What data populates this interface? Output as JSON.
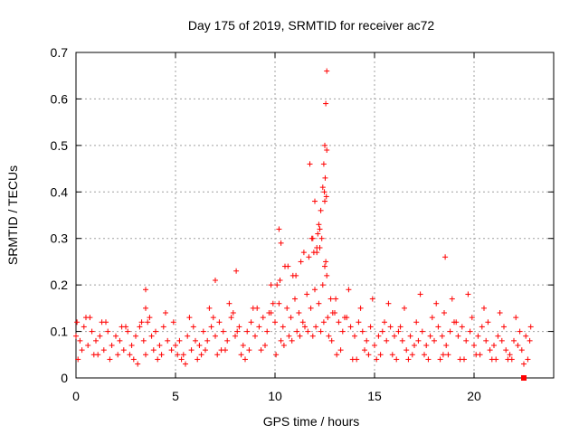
{
  "chart_data": {
    "type": "scatter",
    "title": "Day 175 of 2019, SRMTID for receiver ac72",
    "xlabel": "GPS time / hours",
    "ylabel": "SRMTID / TECUs",
    "xlim": [
      0,
      24
    ],
    "ylim": [
      0,
      0.7
    ],
    "xticks": [
      0,
      5,
      10,
      15,
      20
    ],
    "yticks": [
      0,
      0.1,
      0.2,
      0.3,
      0.4,
      0.5,
      0.6,
      0.7
    ],
    "xtick_labels": [
      "0",
      "5",
      "10",
      "15",
      "20"
    ],
    "ytick_labels": [
      "0",
      "0.1",
      "0.2",
      "0.3",
      "0.4",
      "0.5",
      "0.6",
      "0.7"
    ],
    "grid": true,
    "marker": "plus",
    "color": "#ff0000",
    "series": [
      {
        "name": "SRMTID",
        "x": [
          0.0,
          0.2,
          0.4,
          0.6,
          0.8,
          1.0,
          1.2,
          1.4,
          1.6,
          1.8,
          2.0,
          2.2,
          2.4,
          2.6,
          2.8,
          3.0,
          3.2,
          3.4,
          3.6,
          3.8,
          4.0,
          4.2,
          4.4,
          4.6,
          4.8,
          5.0,
          5.2,
          5.4,
          5.6,
          5.8,
          6.0,
          6.2,
          6.4,
          6.6,
          6.8,
          7.0,
          7.2,
          7.4,
          7.6,
          7.8,
          8.0,
          8.2,
          8.4,
          8.6,
          8.8,
          9.0,
          9.2,
          9.4,
          9.6,
          9.8,
          10.0,
          10.2,
          10.4,
          10.6,
          10.8,
          11.0,
          11.2,
          11.4,
          11.6,
          11.8,
          12.0,
          12.2,
          12.4,
          12.6,
          12.8,
          13.0,
          13.2,
          13.4,
          13.6,
          13.8,
          14.0,
          14.2,
          14.4,
          14.6,
          14.8,
          15.0,
          15.2,
          15.4,
          15.6,
          15.8,
          16.0,
          16.2,
          16.4,
          16.6,
          16.8,
          17.0,
          17.2,
          17.4,
          17.6,
          17.8,
          18.0,
          18.2,
          18.4,
          18.6,
          18.8,
          19.0,
          19.2,
          19.4,
          19.6,
          19.8,
          20.0,
          20.2,
          20.4,
          20.6,
          20.8,
          21.0,
          21.2,
          21.4,
          21.6,
          21.8,
          22.0,
          22.2,
          22.4,
          22.6,
          22.8,
          0.05,
          0.3,
          0.7,
          1.1,
          1.5,
          2.1,
          2.5,
          2.9,
          3.3,
          3.5,
          3.7,
          4.3,
          4.9,
          5.3,
          5.9,
          6.3,
          6.9,
          7.3,
          7.9,
          8.1,
          8.3,
          8.9,
          9.3,
          9.7,
          10.1,
          10.3,
          10.5,
          10.7,
          10.9,
          11.1,
          11.3,
          11.5,
          11.7,
          11.9,
          12.1,
          12.3,
          12.5,
          12.7,
          12.9,
          13.1,
          13.5,
          13.9,
          14.3,
          14.7,
          15.1,
          15.5,
          15.9,
          16.3,
          16.7,
          17.1,
          17.5,
          17.9,
          18.3,
          18.5,
          18.7,
          19.1,
          19.5,
          19.9,
          20.3,
          20.7,
          21.1,
          21.5,
          21.9,
          22.3,
          22.7,
          0.1,
          0.5,
          0.9,
          1.3,
          1.7,
          2.3,
          2.7,
          3.1,
          3.5,
          3.9,
          4.1,
          4.5,
          5.1,
          5.5,
          5.7,
          6.1,
          6.5,
          6.7,
          7.1,
          7.5,
          7.7,
          8.5,
          8.7,
          9.1,
          9.5,
          9.9,
          10.05,
          10.25,
          10.45,
          10.65,
          10.85,
          11.05,
          11.25,
          11.45,
          11.65,
          11.85,
          12.05,
          12.25,
          12.45,
          12.55,
          12.65,
          12.85,
          13.05,
          13.3,
          13.7,
          14.1,
          14.5,
          14.9,
          15.3,
          15.7,
          16.1,
          16.5,
          16.9,
          17.3,
          17.7,
          18.1,
          18.45,
          18.9,
          19.3,
          19.7,
          20.1,
          20.5,
          20.9,
          21.3,
          21.7,
          22.1,
          22.5,
          22.85,
          12.0,
          12.2,
          12.3,
          12.4,
          12.45,
          12.5,
          12.55,
          12.6,
          12.35,
          12.25,
          12.15,
          11.95,
          11.75,
          12.52,
          12.58,
          12.5,
          12.48,
          12.6,
          11.9,
          12.1,
          10.2,
          10.3,
          18.55,
          8.05,
          9.8,
          3.5,
          7.0
        ],
        "y": [
          0.09,
          0.08,
          0.11,
          0.07,
          0.1,
          0.08,
          0.09,
          0.06,
          0.1,
          0.07,
          0.09,
          0.08,
          0.06,
          0.1,
          0.07,
          0.09,
          0.11,
          0.08,
          0.12,
          0.09,
          0.1,
          0.07,
          0.11,
          0.08,
          0.06,
          0.07,
          0.08,
          0.05,
          0.09,
          0.06,
          0.08,
          0.07,
          0.1,
          0.08,
          0.11,
          0.09,
          0.12,
          0.1,
          0.08,
          0.13,
          0.09,
          0.11,
          0.07,
          0.1,
          0.12,
          0.09,
          0.11,
          0.13,
          0.1,
          0.14,
          0.12,
          0.16,
          0.11,
          0.15,
          0.13,
          0.17,
          0.14,
          0.12,
          0.18,
          0.15,
          0.19,
          0.16,
          0.2,
          0.22,
          0.17,
          0.14,
          0.12,
          0.1,
          0.13,
          0.11,
          0.09,
          0.12,
          0.1,
          0.08,
          0.11,
          0.07,
          0.09,
          0.1,
          0.08,
          0.11,
          0.09,
          0.1,
          0.08,
          0.06,
          0.09,
          0.07,
          0.08,
          0.1,
          0.07,
          0.09,
          0.08,
          0.11,
          0.09,
          0.07,
          0.1,
          0.12,
          0.09,
          0.11,
          0.08,
          0.1,
          0.07,
          0.09,
          0.11,
          0.08,
          0.06,
          0.07,
          0.09,
          0.08,
          0.06,
          0.05,
          0.08,
          0.07,
          0.06,
          0.09,
          0.08,
          0.12,
          0.06,
          0.13,
          0.05,
          0.12,
          0.05,
          0.11,
          0.04,
          0.12,
          0.05,
          0.13,
          0.05,
          0.12,
          0.04,
          0.11,
          0.05,
          0.13,
          0.06,
          0.14,
          0.1,
          0.05,
          0.15,
          0.06,
          0.14,
          0.2,
          0.08,
          0.24,
          0.09,
          0.22,
          0.1,
          0.25,
          0.11,
          0.26,
          0.09,
          0.28,
          0.1,
          0.24,
          0.09,
          0.14,
          0.05,
          0.13,
          0.04,
          0.15,
          0.05,
          0.04,
          0.12,
          0.05,
          0.11,
          0.04,
          0.12,
          0.05,
          0.13,
          0.04,
          0.14,
          0.05,
          0.12,
          0.04,
          0.13,
          0.05,
          0.12,
          0.04,
          0.11,
          0.04,
          0.1,
          0.04,
          0.04,
          0.13,
          0.05,
          0.12,
          0.04,
          0.11,
          0.05,
          0.03,
          0.15,
          0.06,
          0.04,
          0.14,
          0.05,
          0.03,
          0.13,
          0.04,
          0.06,
          0.15,
          0.05,
          0.06,
          0.16,
          0.04,
          0.06,
          0.15,
          0.07,
          0.16,
          0.05,
          0.21,
          0.07,
          0.24,
          0.08,
          0.22,
          0.09,
          0.27,
          0.1,
          0.3,
          0.11,
          0.32,
          0.12,
          0.25,
          0.13,
          0.08,
          0.17,
          0.06,
          0.19,
          0.04,
          0.06,
          0.17,
          0.05,
          0.16,
          0.04,
          0.15,
          0.05,
          0.18,
          0.04,
          0.16,
          0.05,
          0.17,
          0.04,
          0.18,
          0.05,
          0.15,
          0.04,
          0.14,
          0.04,
          0.13,
          0.03,
          0.11,
          0.38,
          0.33,
          0.36,
          0.41,
          0.46,
          0.5,
          0.59,
          0.66,
          0.3,
          0.28,
          0.31,
          0.27,
          0.46,
          0.43,
          0.39,
          0.38,
          0.4,
          0.49,
          0.3,
          0.27,
          0.32,
          0.29,
          0.26,
          0.23,
          0.2,
          0.19,
          0.21
        ]
      }
    ],
    "extra_marker": {
      "shape": "square",
      "x": 22.5,
      "y": 0.0
    }
  }
}
